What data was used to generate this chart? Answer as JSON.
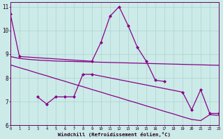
{
  "xlabel": "Windchill (Refroidissement éolien,°C)",
  "bg_color": "#cceae8",
  "grid_color": "#aad4d0",
  "line_color": "#880088",
  "hours": [
    0,
    1,
    2,
    3,
    4,
    5,
    6,
    7,
    8,
    9,
    10,
    11,
    12,
    13,
    14,
    15,
    16,
    17,
    18,
    19,
    20,
    21,
    22,
    23
  ],
  "series1": [
    10.7,
    8.9,
    null,
    null,
    null,
    null,
    null,
    null,
    null,
    8.7,
    9.5,
    10.6,
    11.0,
    10.2,
    9.3,
    8.7,
    7.9,
    7.85,
    null,
    null,
    null,
    null,
    null,
    null
  ],
  "series2": [
    8.9,
    8.82,
    8.78,
    8.75,
    8.73,
    8.71,
    8.7,
    8.69,
    8.68,
    8.67,
    8.66,
    8.65,
    8.64,
    8.63,
    8.62,
    8.61,
    8.6,
    8.59,
    8.58,
    8.57,
    8.56,
    8.55,
    8.54,
    8.53
  ],
  "series3": [
    8.55,
    8.43,
    8.32,
    8.2,
    8.09,
    7.97,
    7.86,
    7.74,
    7.63,
    7.51,
    7.4,
    7.28,
    7.17,
    7.05,
    6.94,
    6.82,
    6.71,
    6.59,
    6.48,
    6.36,
    6.25,
    6.2,
    6.45,
    6.42
  ],
  "series4": [
    null,
    null,
    null,
    7.2,
    6.9,
    7.2,
    7.2,
    7.2,
    8.15,
    8.15,
    null,
    null,
    null,
    null,
    null,
    null,
    null,
    null,
    null,
    7.4,
    6.65,
    7.5,
    6.5,
    6.5
  ],
  "ylim": [
    6.0,
    11.2
  ],
  "yticks": [
    6,
    7,
    8,
    9,
    10,
    11
  ],
  "xlim": [
    0,
    23
  ],
  "xticks": [
    0,
    1,
    2,
    3,
    4,
    5,
    6,
    7,
    8,
    9,
    10,
    11,
    12,
    13,
    14,
    15,
    16,
    17,
    18,
    19,
    20,
    21,
    22,
    23
  ]
}
